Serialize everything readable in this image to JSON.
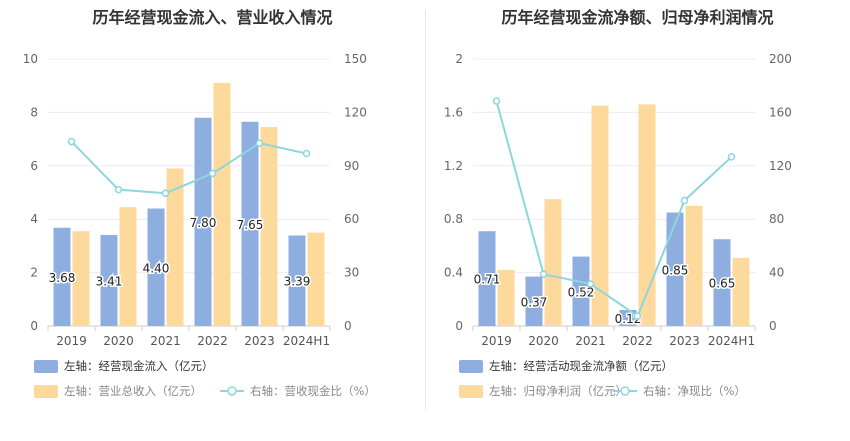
{
  "chart_data": [
    {
      "type": "bar",
      "title": "历年经营现金流入、营业收入情况",
      "categories": [
        "2019",
        "2020",
        "2021",
        "2022",
        "2023",
        "2024H1"
      ],
      "y_left": {
        "min": 0,
        "max": 10,
        "ticks": [
          0,
          2,
          4,
          6,
          8,
          10
        ],
        "tick_labels": [
          "0",
          "2",
          "4",
          "6",
          "8",
          "10"
        ]
      },
      "y_right": {
        "min": 0,
        "max": 150,
        "ticks": [
          0,
          30,
          60,
          90,
          120,
          150
        ],
        "tick_labels": [
          "0",
          "30",
          "60",
          "90",
          "120",
          "150"
        ]
      },
      "series": [
        {
          "name": "左轴：经营现金流入（亿元）",
          "axis": "left",
          "kind": "bar",
          "color": "#8eaee0",
          "values": [
            3.68,
            3.41,
            4.4,
            7.8,
            7.65,
            3.39
          ],
          "labels": [
            "3.68",
            "3.41",
            "4.40",
            "7.80",
            "7.65",
            "3.39"
          ]
        },
        {
          "name": "左轴：营业总收入（亿元）",
          "axis": "left",
          "kind": "bar",
          "color": "#fdd99b",
          "values": [
            3.55,
            4.45,
            5.9,
            9.1,
            7.45,
            3.5
          ]
        },
        {
          "name": "右轴：营收现金比（%）",
          "axis": "right",
          "kind": "line",
          "color": "#8dd6de",
          "values": [
            103.6,
            76.6,
            74.6,
            85.7,
            102.7,
            96.9
          ]
        }
      ]
    },
    {
      "type": "bar",
      "title": "历年经营现金流净额、归母净利润情况",
      "categories": [
        "2019",
        "2020",
        "2021",
        "2022",
        "2023",
        "2024H1"
      ],
      "y_left": {
        "min": 0,
        "max": 2,
        "ticks": [
          0,
          0.4,
          0.8,
          1.2,
          1.6,
          2
        ],
        "tick_labels": [
          "0",
          "0.4",
          "0.8",
          "1.2",
          "1.6",
          "2"
        ]
      },
      "y_right": {
        "min": 0,
        "max": 200,
        "ticks": [
          0,
          40,
          80,
          120,
          160,
          200
        ],
        "tick_labels": [
          "0",
          "40",
          "80",
          "120",
          "160",
          "200"
        ]
      },
      "series": [
        {
          "name": "左轴：经营活动现金流净额（亿元）",
          "axis": "left",
          "kind": "bar",
          "color": "#8eaee0",
          "values": [
            0.71,
            0.37,
            0.52,
            0.12,
            0.85,
            0.65
          ],
          "labels": [
            "0.71",
            "0.37",
            "0.52",
            "0.12",
            "0.85",
            "0.65"
          ]
        },
        {
          "name": "左轴：归母净利润（亿元）",
          "axis": "left",
          "kind": "bar",
          "color": "#fdd99b",
          "values": [
            0.42,
            0.95,
            1.65,
            1.66,
            0.9,
            0.51
          ]
        },
        {
          "name": "右轴：净现比（%）",
          "axis": "right",
          "kind": "line",
          "color": "#8dd6de",
          "values": [
            168.5,
            38.8,
            31.5,
            7.4,
            94.0,
            126.7
          ]
        }
      ]
    }
  ]
}
